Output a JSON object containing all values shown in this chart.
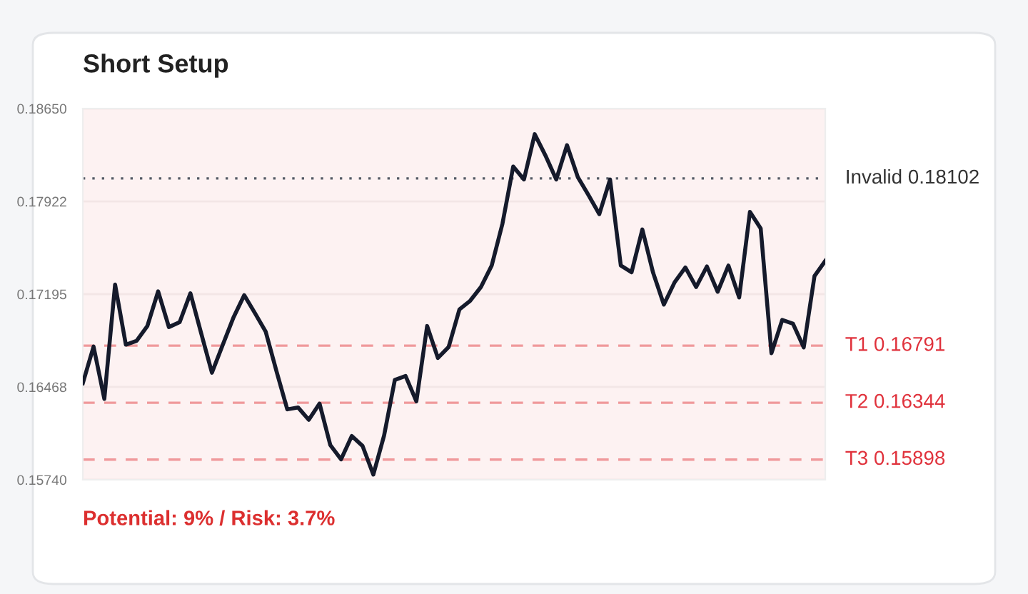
{
  "chart_data": {
    "type": "line",
    "title": "Short Setup",
    "categories": [
      null,
      null,
      null,
      null,
      null,
      null,
      null,
      null,
      null,
      null,
      null,
      null,
      null,
      null,
      null,
      null,
      null,
      null,
      null,
      null,
      null,
      null,
      null,
      null,
      null,
      null,
      null,
      null,
      null,
      null,
      null,
      null,
      null,
      null,
      null,
      null,
      null,
      null,
      null,
      null,
      null,
      null,
      null,
      null,
      null,
      null,
      null,
      null,
      null,
      null,
      null,
      null,
      null,
      null,
      null,
      null,
      null,
      null,
      null,
      null,
      null,
      null,
      null,
      null,
      null,
      null,
      null,
      null,
      null,
      null
    ],
    "series": [
      {
        "color": "#151a2b",
        "values": [
          0.16497,
          0.16784,
          0.16374,
          0.1727,
          0.16799,
          0.16829,
          0.16945,
          0.17217,
          0.16937,
          0.16975,
          0.17202,
          0.16889,
          0.16579,
          0.16796,
          0.17012,
          0.17187,
          0.17046,
          0.169,
          0.16591,
          0.16292,
          0.16307,
          0.1621,
          0.16337,
          0.16012,
          0.159,
          0.16083,
          0.16005,
          0.15781,
          0.16087,
          0.16523,
          0.16553,
          0.16355,
          0.16945,
          0.16695,
          0.16781,
          0.17075,
          0.17143,
          0.17251,
          0.17419,
          0.17747,
          0.18195,
          0.18094,
          0.18449,
          0.18281,
          0.18094,
          0.18363,
          0.18113,
          0.17971,
          0.17822,
          0.18094,
          0.17419,
          0.17367,
          0.17702,
          0.17363,
          0.17113,
          0.17288,
          0.17404,
          0.17251,
          0.17412,
          0.17214,
          0.17419,
          0.17169,
          0.1784,
          0.1771,
          0.16732,
          0.16993,
          0.16963,
          0.16777,
          0.17337,
          0.17456
        ]
      }
    ],
    "ylim": [
      0.1574,
      0.1865
    ],
    "yticks": [
      {
        "value": 0.1574,
        "label": "0.15740"
      },
      {
        "value": 0.16468,
        "label": "0.16468"
      },
      {
        "value": 0.17195,
        "label": "0.17195"
      },
      {
        "value": 0.17922,
        "label": "0.17922"
      },
      {
        "value": 0.1865,
        "label": "0.18650"
      }
    ],
    "tick_labels": "y",
    "grid": "y",
    "marker": "none",
    "line_style": "solid",
    "ref_lines": [
      {
        "axis": "y",
        "value": 0.18102,
        "label": "Invalid 0.18102",
        "color": "#555b66",
        "line_style": "dotted"
      },
      {
        "axis": "y",
        "value": 0.16791,
        "label": "T1 0.16791",
        "color": "#f0999b",
        "line_style": "dashed"
      },
      {
        "axis": "y",
        "value": 0.16344,
        "label": "T2 0.16344",
        "color": "#f0999b",
        "line_style": "dashed"
      },
      {
        "axis": "y",
        "value": 0.15898,
        "label": "T3 0.15898",
        "color": "#f0999b",
        "line_style": "dashed"
      }
    ],
    "annotations": [
      "Potential: 9% / Risk: 3.7%"
    ]
  }
}
